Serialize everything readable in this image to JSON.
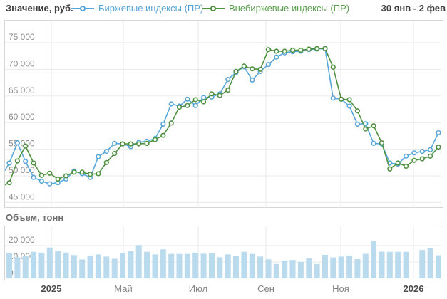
{
  "header": {
    "title": "Значение, руб.",
    "legend": [
      {
        "label": "Биржевые индексы (ПР)",
        "color": "#57a6d9",
        "marker": "line-circle-icon"
      },
      {
        "label": "Внебиржевые индексы (ПР)",
        "color": "#4e9140",
        "marker": "line-circle-icon"
      }
    ],
    "date_range": "30 янв - 2 фев"
  },
  "volume_header": {
    "title": "Объем, тонн"
  },
  "chart_data": [
    {
      "type": "line",
      "title": "Значение, руб.",
      "ylabel": "Значение, руб.",
      "xlabel": "",
      "legend_position": "top",
      "grid": true,
      "marker": "open-circle",
      "ylim": [
        44200,
        76600
      ],
      "y_tick_labels": [
        "75 000",
        "70 000",
        "65 000",
        "60 000",
        "55 000",
        "50 000",
        "45 000"
      ],
      "y_tick_values": [
        75000,
        70000,
        65000,
        60000,
        55000,
        50000,
        45000
      ],
      "x_tick_labels": [
        "2025",
        "Май",
        "Июл",
        "Сен",
        "Ноя",
        "2026"
      ],
      "series": [
        {
          "name": "Биржевые индексы (ПР)",
          "color": "#57a6d9",
          "edge_value": 51000,
          "values": [
            52400,
            56200,
            52700,
            49700,
            49000,
            48500,
            48700,
            49400,
            50900,
            50400,
            49700,
            53600,
            54600,
            56100,
            56000,
            55500,
            56300,
            56500,
            57000,
            59700,
            63500,
            63100,
            64400,
            63200,
            64700,
            64800,
            65400,
            68100,
            69400,
            70500,
            68000,
            69600,
            70900,
            72300,
            73100,
            73300,
            73400,
            73700,
            73800,
            73900,
            64600,
            64400,
            63100,
            59700,
            59800,
            56100,
            56000,
            52400,
            52200,
            53700,
            54300,
            54600,
            54900,
            58100
          ]
        },
        {
          "name": "Внебиржевые индексы (ПР)",
          "color": "#4e9140",
          "edge_value": 48300,
          "values": [
            48700,
            52800,
            55600,
            52400,
            50100,
            50500,
            49400,
            50000,
            50700,
            50700,
            50300,
            50400,
            52500,
            54200,
            56000,
            56000,
            56000,
            56100,
            56800,
            57600,
            59900,
            62900,
            63200,
            64300,
            63900,
            65400,
            65100,
            66100,
            69600,
            70600,
            70100,
            70000,
            73700,
            73400,
            73400,
            73600,
            73600,
            73800,
            73900,
            73900,
            70400,
            64400,
            64300,
            62200,
            58800,
            59400,
            56200,
            51300,
            52400,
            51800,
            52900,
            53200,
            53700,
            55400
          ]
        }
      ]
    },
    {
      "type": "bar",
      "title": "Объем, тонн",
      "ylabel": "Объем, тонн",
      "xlabel": "",
      "grid": true,
      "color": "#badaed",
      "ylim": [
        0,
        31500
      ],
      "y_tick_labels": [
        "20 000",
        "10 000",
        "0"
      ],
      "y_tick_values": [
        20000,
        10000,
        0
      ],
      "x_tick_labels": [
        "2025",
        "Май",
        "Июл",
        "Сен",
        "Ноя",
        "2026"
      ],
      "values": [
        15400,
        12900,
        13600,
        16200,
        15700,
        18800,
        16800,
        15800,
        14200,
        11500,
        13800,
        14600,
        13300,
        12000,
        15500,
        16700,
        20300,
        16200,
        14600,
        17700,
        14900,
        14900,
        14900,
        15700,
        15100,
        15500,
        12900,
        14600,
        13600,
        16200,
        14900,
        13300,
        11600,
        8800,
        10900,
        11200,
        10100,
        12300,
        8800,
        14400,
        12800,
        13300,
        13900,
        11800,
        15000,
        22600,
        16300,
        16200,
        16200,
        16200,
        null,
        17300,
        18700,
        14100
      ]
    }
  ]
}
